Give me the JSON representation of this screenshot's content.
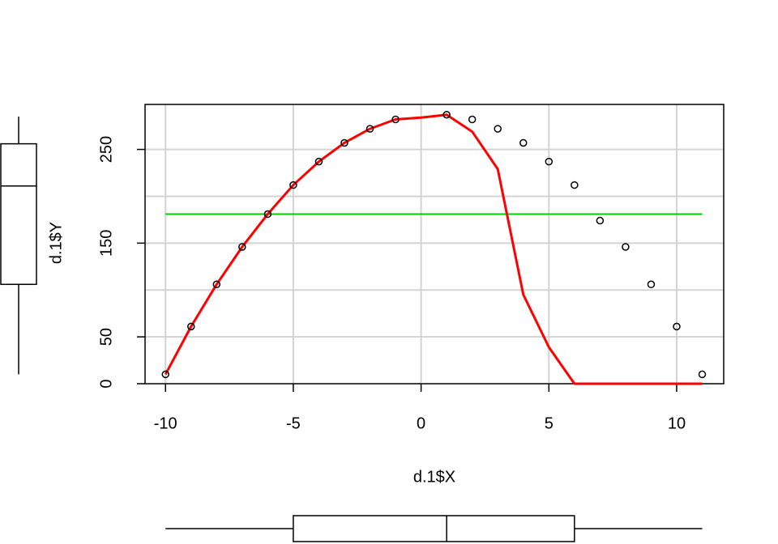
{
  "chart_data": {
    "type": "scatter",
    "xlabel": "d.1$X",
    "ylabel": "d.1$Y",
    "x": [
      -10,
      -9,
      -8,
      -7,
      -6,
      -5,
      -4,
      -3,
      -2,
      -1,
      1,
      2,
      3,
      4,
      5,
      6,
      7,
      8,
      9,
      10,
      11
    ],
    "values": [
      10,
      61,
      106,
      146,
      181,
      212,
      237,
      257,
      272,
      282,
      287,
      282,
      272,
      257,
      237,
      212,
      174,
      146,
      106,
      61,
      10
    ],
    "point_color": "#000000",
    "fit": {
      "color": "#ff0000",
      "x": [
        -10,
        -9,
        -8,
        -7,
        -6,
        -5,
        -4,
        -3,
        -2,
        -1,
        0,
        1,
        2,
        3,
        4,
        5,
        6,
        7,
        8,
        9,
        10,
        11
      ],
      "values": [
        10,
        61,
        106,
        146,
        181,
        212,
        237,
        257,
        272,
        282,
        284,
        287,
        269,
        229,
        95,
        39,
        0,
        0,
        0,
        0,
        0,
        0
      ]
    },
    "hline": {
      "color": "#00cc00",
      "value": 181,
      "x": [
        -10,
        11
      ]
    },
    "xlim": [
      -10.8,
      11.84
    ],
    "ylim": [
      0,
      298
    ],
    "xticks": [
      -10,
      -5,
      0,
      5,
      10
    ],
    "yticks": [
      0,
      50,
      150,
      250
    ],
    "ygrid": [
      50,
      100,
      150,
      200,
      250
    ],
    "grid": true,
    "box_y": {
      "min": 10,
      "q1": 106,
      "median": 211,
      "q3": 256,
      "max": 285
    },
    "box_x": {
      "min": -10,
      "q1": -5,
      "median": 1,
      "q3": 6,
      "max": 11
    }
  }
}
